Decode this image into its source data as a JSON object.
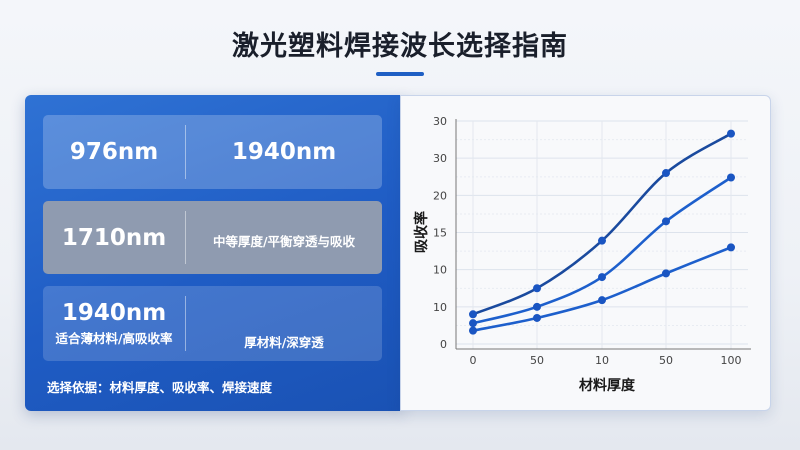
{
  "title": "激光塑料焊接波长选择指南",
  "panel": {
    "rows": [
      {
        "left": "976nm",
        "right": "1940nm"
      },
      {
        "left": "1710nm",
        "right": "中等厚度/平衡穿透与吸收"
      },
      {
        "left": "1940nm",
        "left_sub": "适合薄材料/高吸收率",
        "right": "厚材料/深穿透"
      }
    ],
    "footer": "选择依据：材料厚度、吸收率、焊接速度"
  },
  "chart_data": {
    "type": "line",
    "title": "",
    "xlabel": "材料厚度",
    "ylabel": "吸收率",
    "categories": [
      "0",
      "50",
      "10",
      "50",
      "100"
    ],
    "y_tick_labels": [
      "0",
      "10",
      "10",
      "15",
      "20",
      "30",
      "30"
    ],
    "ylim": [
      0,
      30
    ],
    "grid": true,
    "series": [
      {
        "values": [
          4.0,
          7.5,
          13.9,
          23.0,
          28.3
        ],
        "color": "#1a4a9e"
      },
      {
        "values": [
          2.8,
          5.0,
          9.0,
          16.5,
          22.4
        ],
        "color": "#1d5fcc"
      },
      {
        "values": [
          1.8,
          3.5,
          5.9,
          9.5,
          13.0
        ],
        "color": "#1d5fcc"
      }
    ]
  }
}
